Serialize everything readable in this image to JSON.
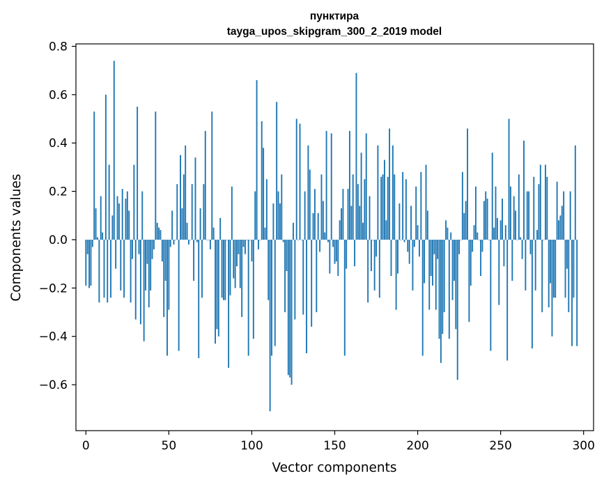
{
  "chart_data": {
    "type": "bar",
    "title": "пунктира",
    "subtitle": "tayga_upos_skipgram_300_2_2019 model",
    "xlabel": "Vector components",
    "ylabel": "Components values",
    "xlim": [
      -6,
      306
    ],
    "ylim": [
      -0.79,
      0.81
    ],
    "xticks": [
      0,
      50,
      100,
      150,
      200,
      250,
      300
    ],
    "yticks": [
      -0.6,
      -0.4,
      -0.2,
      0.0,
      0.2,
      0.4,
      0.6,
      0.8
    ],
    "ytick_labels": [
      "−0.6",
      "−0.4",
      "−0.2",
      "0.0",
      "0.2",
      "0.4",
      "0.6",
      "0.8"
    ],
    "grid": false,
    "bar_color": "#1f77b4",
    "values": [
      -0.19,
      -0.06,
      -0.2,
      -0.19,
      -0.03,
      0.53,
      0.13,
      0.01,
      -0.26,
      0.18,
      0.03,
      -0.24,
      0.6,
      -0.26,
      0.31,
      -0.24,
      0.1,
      0.74,
      -0.12,
      0.18,
      0.15,
      -0.21,
      0.21,
      -0.24,
      0.17,
      0.2,
      0.12,
      -0.26,
      -0.08,
      0.31,
      -0.33,
      0.55,
      -0.06,
      -0.35,
      0.2,
      -0.42,
      -0.21,
      -0.1,
      -0.28,
      -0.21,
      -0.08,
      -0.04,
      0.53,
      0.07,
      0.05,
      0.04,
      -0.09,
      -0.32,
      -0.17,
      -0.48,
      -0.29,
      -0.03,
      0.12,
      -0.02,
      0.0,
      0.23,
      -0.46,
      0.35,
      0.13,
      0.27,
      0.39,
      0.07,
      -0.02,
      0.0,
      0.23,
      -0.17,
      0.34,
      -0.01,
      -0.49,
      0.13,
      -0.24,
      0.23,
      0.45,
      0.0,
      0.0,
      -0.04,
      0.53,
      0.05,
      -0.43,
      -0.37,
      -0.4,
      0.09,
      -0.24,
      -0.25,
      -0.25,
      0.0,
      -0.53,
      -0.23,
      0.22,
      -0.16,
      -0.2,
      -0.11,
      -0.06,
      -0.2,
      -0.32,
      -0.03,
      -0.06,
      0.0,
      -0.48,
      0.0,
      -0.09,
      -0.41,
      0.2,
      0.66,
      -0.04,
      0.0,
      0.49,
      0.38,
      0.05,
      0.25,
      -0.25,
      -0.71,
      -0.48,
      0.15,
      -0.44,
      0.57,
      0.2,
      0.15,
      0.27,
      -0.01,
      -0.3,
      -0.13,
      -0.56,
      -0.57,
      -0.6,
      0.07,
      -0.33,
      0.5,
      0.0,
      0.48,
      0.0,
      -0.31,
      0.2,
      -0.47,
      0.39,
      0.29,
      -0.36,
      0.11,
      0.21,
      -0.3,
      0.11,
      -0.05,
      0.27,
      0.16,
      0.03,
      0.45,
      -0.01,
      -0.14,
      0.44,
      -0.03,
      -0.1,
      -0.09,
      -0.15,
      0.08,
      0.13,
      0.21,
      -0.48,
      -0.12,
      0.21,
      0.45,
      0.14,
      0.27,
      -0.11,
      0.69,
      0.23,
      0.14,
      0.36,
      0.07,
      0.25,
      0.44,
      -0.26,
      0.18,
      -0.13,
      0.0,
      -0.21,
      -0.07,
      0.39,
      -0.24,
      0.26,
      0.27,
      0.33,
      0.08,
      0.26,
      0.46,
      -0.15,
      0.39,
      0.27,
      -0.29,
      -0.14,
      0.15,
      0.0,
      0.28,
      -0.01,
      0.25,
      -0.05,
      -0.1,
      0.14,
      -0.21,
      -0.03,
      0.22,
      0.06,
      -0.07,
      0.28,
      -0.48,
      -0.18,
      0.31,
      0.12,
      -0.29,
      -0.15,
      -0.19,
      -0.06,
      -0.29,
      -0.08,
      -0.41,
      -0.51,
      -0.39,
      -0.3,
      0.08,
      0.05,
      -0.41,
      0.03,
      -0.25,
      -0.17,
      -0.37,
      -0.58,
      -0.06,
      0.0,
      0.28,
      0.11,
      0.16,
      0.46,
      -0.34,
      -0.19,
      -0.05,
      0.06,
      0.22,
      0.03,
      0.0,
      -0.15,
      -0.05,
      0.16,
      0.2,
      0.17,
      0.0,
      -0.46,
      0.36,
      0.05,
      0.22,
      0.09,
      -0.27,
      0.08,
      0.17,
      -0.11,
      0.06,
      -0.5,
      0.5,
      0.22,
      -0.17,
      0.18,
      0.12,
      0.0,
      0.27,
      0.01,
      -0.08,
      0.41,
      -0.21,
      0.2,
      0.2,
      -0.06,
      -0.45,
      0.26,
      -0.21,
      0.04,
      0.23,
      0.31,
      -0.3,
      0.0,
      0.31,
      0.26,
      -0.28,
      -0.18,
      -0.4,
      -0.24,
      -0.24,
      0.24,
      0.08,
      0.1,
      0.14,
      0.2,
      -0.24,
      -0.12,
      -0.3,
      0.2,
      -0.44,
      -0.24,
      0.39,
      -0.44
    ]
  }
}
